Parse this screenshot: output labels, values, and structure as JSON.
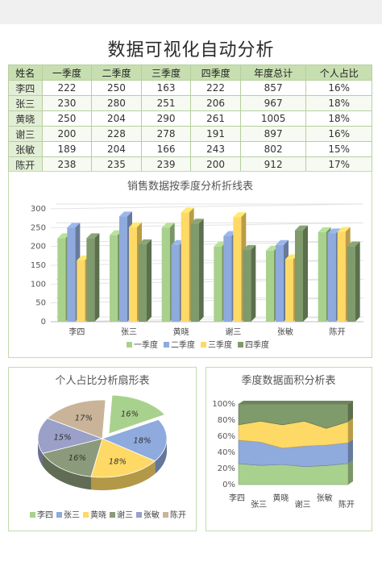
{
  "title": "数据可视化自动分析",
  "table": {
    "headers": [
      "姓名",
      "一季度",
      "二季度",
      "三季度",
      "四季度",
      "年度总计",
      "个人占比"
    ],
    "rows": [
      [
        "李四",
        "222",
        "250",
        "163",
        "222",
        "857",
        "16%"
      ],
      [
        "张三",
        "230",
        "280",
        "251",
        "206",
        "967",
        "18%"
      ],
      [
        "黄晓",
        "250",
        "204",
        "290",
        "261",
        "1005",
        "18%"
      ],
      [
        "谢三",
        "200",
        "228",
        "278",
        "191",
        "897",
        "16%"
      ],
      [
        "张敏",
        "189",
        "204",
        "166",
        "243",
        "802",
        "15%"
      ],
      [
        "陈开",
        "238",
        "235",
        "239",
        "200",
        "912",
        "17%"
      ]
    ]
  },
  "colors": {
    "q1": "#a9d18e",
    "q2": "#8faadc",
    "q3": "#ffd966",
    "q4": "#7f9a6b",
    "pie": [
      "#a9d18e",
      "#8faadc",
      "#ffd966",
      "#8a9a7a",
      "#9aa0c8",
      "#c9b49a"
    ]
  },
  "chart_data": [
    {
      "type": "bar",
      "title": "销售数据按季度分析折线表",
      "categories": [
        "李四",
        "张三",
        "黄晓",
        "谢三",
        "张敏",
        "陈开"
      ],
      "series": [
        {
          "name": "一季度",
          "values": [
            222,
            230,
            250,
            200,
            189,
            238
          ]
        },
        {
          "name": "二季度",
          "values": [
            250,
            280,
            204,
            228,
            204,
            235
          ]
        },
        {
          "name": "三季度",
          "values": [
            163,
            251,
            290,
            278,
            166,
            239
          ]
        },
        {
          "name": "四季度",
          "values": [
            222,
            206,
            261,
            191,
            243,
            200
          ]
        }
      ],
      "yticks": [
        "0",
        "50",
        "100",
        "150",
        "200",
        "250",
        "300"
      ],
      "ylim": [
        0,
        300
      ],
      "legend": "bottom"
    },
    {
      "type": "pie",
      "title": "个人占比分析扇形表",
      "categories": [
        "李四",
        "张三",
        "黄晓",
        "谢三",
        "张敏",
        "陈开"
      ],
      "values": [
        16,
        18,
        18,
        16,
        15,
        17
      ],
      "labels": [
        "16%",
        "18%",
        "18%",
        "16%",
        "15%",
        "17%"
      ],
      "legend": "bottom"
    },
    {
      "type": "area",
      "title": "季度数据面积分析表",
      "categories": [
        "李四",
        "张三",
        "黄晓",
        "谢三",
        "张敏",
        "陈开"
      ],
      "series": [
        {
          "name": "一季度",
          "values": [
            222,
            230,
            250,
            200,
            189,
            238
          ]
        },
        {
          "name": "二季度",
          "values": [
            250,
            280,
            204,
            228,
            204,
            235
          ]
        },
        {
          "name": "三季度",
          "values": [
            163,
            251,
            290,
            278,
            166,
            239
          ]
        },
        {
          "name": "四季度",
          "values": [
            222,
            206,
            261,
            191,
            243,
            200
          ]
        }
      ],
      "stacking": "percent",
      "yticks": [
        "0%",
        "20%",
        "40%",
        "60%",
        "80%",
        "100%"
      ]
    }
  ]
}
